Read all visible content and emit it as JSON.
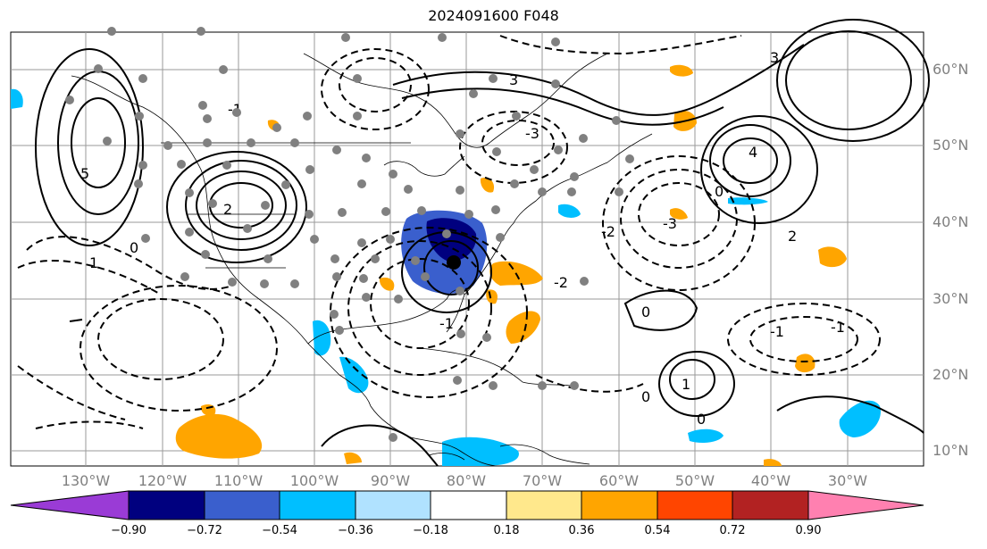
{
  "title": "2024091600 F048",
  "map": {
    "lon_range": [
      -137,
      -17
    ],
    "lat_range": [
      7,
      65
    ],
    "lat_labels": [
      "60°N",
      "50°N",
      "40°N",
      "30°N",
      "20°N",
      "10°N"
    ],
    "lon_labels": [
      "130°W",
      "120°W",
      "110°W",
      "100°W",
      "90°W",
      "80°W",
      "70°W",
      "60°W",
      "50°W",
      "40°W",
      "30°W"
    ],
    "contour_labels": [
      "5",
      "2",
      "1",
      "0",
      "-1",
      "-2",
      "-3",
      "4",
      "3",
      "2",
      "-2",
      "-3",
      "0",
      "3",
      "0",
      "-1",
      "-2",
      "-1",
      "0",
      "1",
      "0",
      "-1"
    ]
  },
  "colorbar": {
    "colors": [
      "#9a3bd6",
      "#00007f",
      "#3a5fcd",
      "#00bfff",
      "#b0e2ff",
      "#ffffff",
      "#ffe88c",
      "#ffa500",
      "#ff4500",
      "#b22222",
      "#ff80b0"
    ],
    "ticks": [
      "−0.90",
      "−0.72",
      "−0.54",
      "−0.36",
      "−0.18",
      "0.18",
      "0.36",
      "0.54",
      "0.72",
      "0.90"
    ]
  }
}
